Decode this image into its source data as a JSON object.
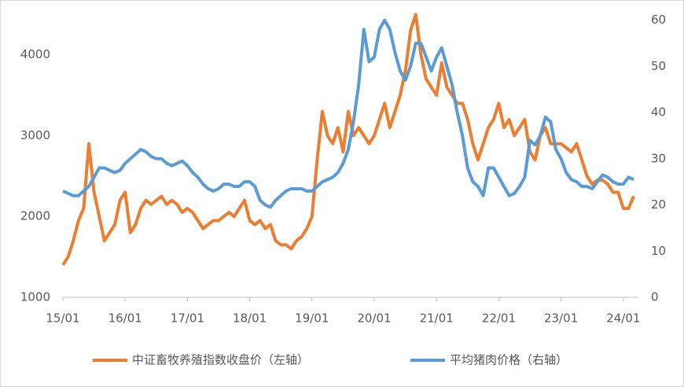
{
  "chart_data": {
    "type": "line",
    "categories": [
      "15/01",
      null,
      null,
      null,
      null,
      null,
      null,
      null,
      null,
      null,
      null,
      null,
      "16/01",
      null,
      null,
      null,
      null,
      null,
      null,
      null,
      null,
      null,
      null,
      null,
      "17/01",
      null,
      null,
      null,
      null,
      null,
      null,
      null,
      null,
      null,
      null,
      null,
      "18/01",
      null,
      null,
      null,
      null,
      null,
      null,
      null,
      null,
      null,
      null,
      null,
      "19/01",
      null,
      null,
      null,
      null,
      null,
      null,
      null,
      null,
      null,
      null,
      null,
      "20/01",
      null,
      null,
      null,
      null,
      null,
      null,
      null,
      null,
      null,
      null,
      null,
      "21/01",
      null,
      null,
      null,
      null,
      null,
      null,
      null,
      null,
      null,
      null,
      null,
      "22/01",
      null,
      null,
      null,
      null,
      null,
      null,
      null,
      null,
      null,
      null,
      null,
      "23/01",
      null,
      null,
      null,
      null,
      null,
      null,
      null,
      null,
      null,
      null,
      null,
      "24/01",
      null,
      null
    ],
    "series": [
      {
        "name": "中证畜牧养殖指数收盘价（左轴）",
        "color": "#ed7d31",
        "axis": "y",
        "values": [
          1400,
          1500,
          1700,
          1950,
          2100,
          2900,
          2300,
          2000,
          1700,
          1800,
          1900,
          2200,
          2300,
          1800,
          1900,
          2100,
          2200,
          2150,
          2200,
          2250,
          2150,
          2200,
          2150,
          2050,
          2100,
          2050,
          1950,
          1850,
          1900,
          1950,
          1950,
          2000,
          2050,
          2000,
          2100,
          2200,
          1950,
          1900,
          1950,
          1850,
          1900,
          1700,
          1650,
          1650,
          1600,
          1700,
          1750,
          1850,
          2000,
          2700,
          3300,
          3000,
          2900,
          3100,
          2800,
          3300,
          3000,
          3100,
          3000,
          2900,
          3000,
          3200,
          3400,
          3100,
          3300,
          3500,
          3800,
          4300,
          4500,
          4000,
          3700,
          3600,
          3500,
          3900,
          3600,
          3500,
          3400,
          3400,
          3200,
          2900,
          2700,
          2900,
          3100,
          3200,
          3400,
          3100,
          3200,
          3000,
          3100,
          3200,
          2800,
          2700,
          3000,
          3100,
          2900,
          2900,
          2900,
          2850,
          2800,
          2900,
          2700,
          2500,
          2400,
          2450,
          2450,
          2400,
          2300,
          2300,
          2100,
          2100,
          2250
        ]
      },
      {
        "name": "平均猪肉价格（右轴）",
        "color": "#5b9bd5",
        "axis": "y2",
        "values": [
          23,
          22.5,
          22,
          22,
          23,
          24,
          26,
          28,
          28,
          27.5,
          27,
          27.5,
          29,
          30,
          31,
          32,
          31.5,
          30.5,
          30,
          30,
          29,
          28.5,
          29,
          29.5,
          28.5,
          27,
          26,
          24.5,
          23.5,
          23,
          23.5,
          24.5,
          24.5,
          24,
          24,
          25,
          25,
          24,
          21,
          20,
          19.5,
          21,
          22,
          23,
          23.5,
          23.5,
          23.5,
          23,
          23,
          24,
          25,
          25.5,
          26,
          27,
          29,
          32,
          38,
          46,
          58,
          51,
          52,
          58,
          60,
          58,
          53,
          49,
          47,
          50,
          55,
          55,
          52,
          49,
          52,
          54,
          50,
          46,
          40,
          35,
          28,
          25,
          24,
          22,
          28,
          28,
          26,
          24,
          22,
          22.5,
          24,
          26,
          34,
          33,
          35,
          39,
          38,
          32,
          30,
          27,
          25.5,
          25,
          24,
          24,
          23.5,
          25,
          26.5,
          26,
          25,
          24.5,
          24.5,
          26,
          25.5
        ]
      }
    ],
    "ylim": [
      1000,
      4600
    ],
    "yticks": [
      1000,
      2000,
      3000,
      4000
    ],
    "y2lim": [
      0,
      63
    ],
    "y2ticks": [
      0,
      10,
      20,
      30,
      40,
      50,
      60
    ],
    "grid": false,
    "legend": "bottom"
  }
}
